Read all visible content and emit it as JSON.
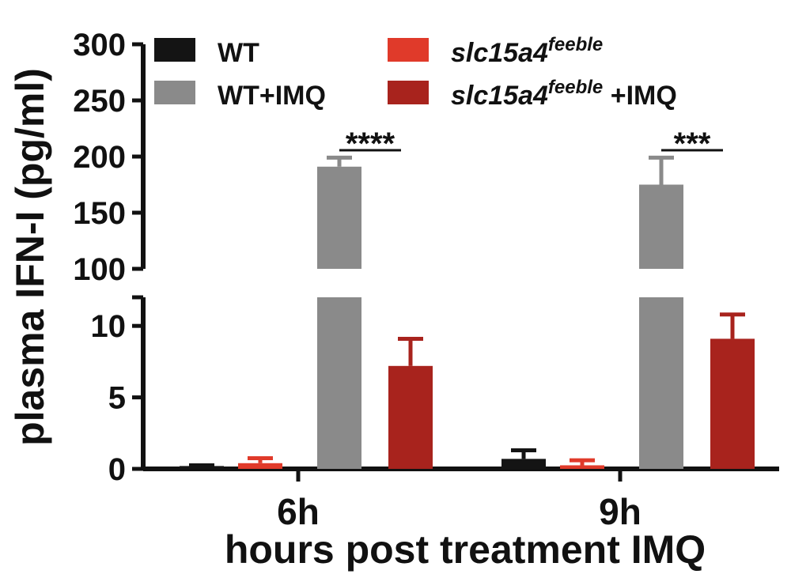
{
  "chart_data": {
    "type": "bar",
    "ylabel": "plasma IFN-I (pg/ml)",
    "xlabel": "hours post treatment IMQ",
    "categories": [
      "6h",
      "9h"
    ],
    "y_axis": {
      "broken": true,
      "lower_segment": {
        "ylim": [
          0,
          12
        ],
        "ticks": [
          "0",
          "5",
          "10"
        ]
      },
      "upper_segment": {
        "ylim": [
          100,
          300
        ],
        "ticks": [
          "100",
          "150",
          "200",
          "250",
          "300"
        ]
      }
    },
    "series": [
      {
        "name": "WT",
        "color": "#141414",
        "values": [
          0.2,
          0.7
        ],
        "errors": [
          0.05,
          0.6
        ]
      },
      {
        "name": "WT+IMQ",
        "color": "#8a8a8a",
        "values": [
          191,
          175
        ],
        "errors": [
          8,
          24
        ]
      },
      {
        "name": "slc15a4^feeble",
        "color": "#e03a2a",
        "values": [
          0.4,
          0.25
        ],
        "errors": [
          0.35,
          0.35
        ]
      },
      {
        "name": "slc15a4^feeble +IMQ",
        "color": "#a8231d",
        "values": [
          7.2,
          9.1
        ],
        "errors": [
          1.9,
          1.7
        ]
      }
    ],
    "legend": {
      "placement": "top",
      "items": [
        {
          "base": "WT",
          "sup": "",
          "suffix": "",
          "italic": false
        },
        {
          "base": "slc15a4",
          "sup": "feeble",
          "suffix": "",
          "italic": true
        },
        {
          "base": "WT+IMQ",
          "sup": "",
          "suffix": "",
          "italic": false
        },
        {
          "base": "slc15a4",
          "sup": "feeble",
          "suffix": " +IMQ",
          "italic": true
        }
      ]
    },
    "annotations": [
      {
        "category": "6h",
        "text": "****"
      },
      {
        "category": "9h",
        "text": "***"
      }
    ],
    "grid": false
  }
}
